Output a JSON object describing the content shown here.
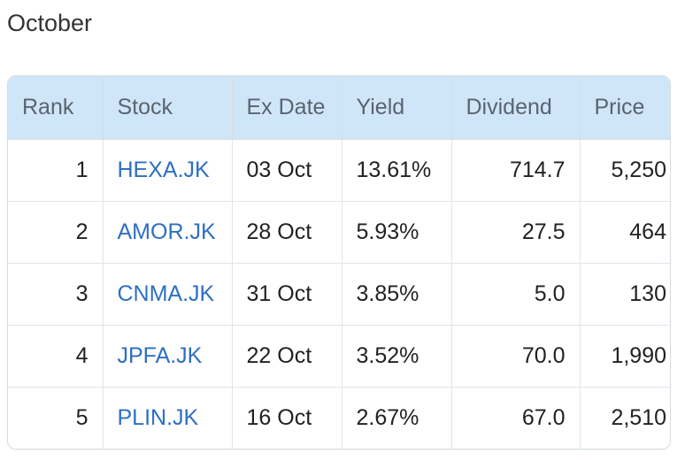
{
  "section": {
    "title": "October"
  },
  "table": {
    "headers": {
      "rank": "Rank",
      "stock": "Stock",
      "ex_date": "Ex Date",
      "yield": "Yield",
      "dividend": "Dividend",
      "price": "Price"
    },
    "rows": [
      {
        "rank": "1",
        "stock": "HEXA.JK",
        "ex_date": "03 Oct",
        "yield": "13.61%",
        "dividend": "714.7",
        "price": "5,250"
      },
      {
        "rank": "2",
        "stock": "AMOR.JK",
        "ex_date": "28 Oct",
        "yield": "5.93%",
        "dividend": "27.5",
        "price": "464"
      },
      {
        "rank": "3",
        "stock": "CNMA.JK",
        "ex_date": "31 Oct",
        "yield": "3.85%",
        "dividend": "5.0",
        "price": "130"
      },
      {
        "rank": "4",
        "stock": "JPFA.JK",
        "ex_date": "22 Oct",
        "yield": "3.52%",
        "dividend": "70.0",
        "price": "1,990"
      },
      {
        "rank": "5",
        "stock": "PLIN.JK",
        "ex_date": "16 Oct",
        "yield": "2.67%",
        "dividend": "67.0",
        "price": "2,510"
      }
    ]
  },
  "colors": {
    "header_background": "#cfe6f8",
    "link": "#2e6fc2",
    "border": "#d6dde3"
  }
}
